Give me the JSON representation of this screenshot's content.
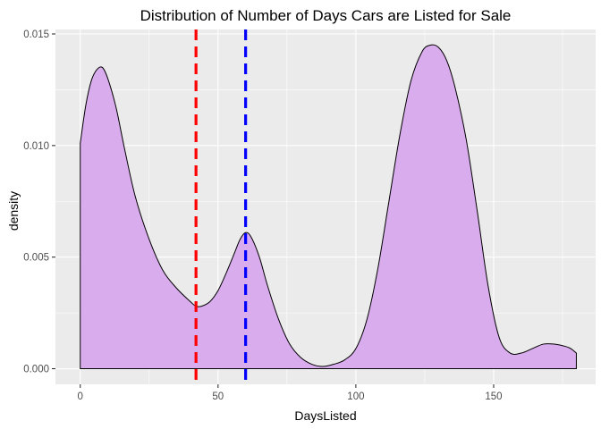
{
  "chart_data": {
    "type": "area",
    "title": "Distribution of Number of Days Cars are Listed for Sale",
    "xlabel": "DaysListed",
    "ylabel": "density",
    "xlim": [
      -9,
      187
    ],
    "ylim": [
      -0.0007,
      0.0152
    ],
    "x_ticks": [
      0,
      50,
      100,
      150
    ],
    "x_tick_labels": [
      "0",
      "50",
      "100",
      "150"
    ],
    "y_ticks": [
      0.0,
      0.005,
      0.01,
      0.015
    ],
    "y_tick_labels": [
      "0.000",
      "0.005",
      "0.010",
      "0.015"
    ],
    "grid": true,
    "legend": "none",
    "series": [
      {
        "x": [
          0,
          2,
          4,
          6,
          8,
          10,
          13,
          16,
          20,
          25,
          30,
          35,
          40,
          42,
          44,
          47,
          50,
          53,
          56,
          58,
          60,
          62,
          65,
          68,
          72,
          76,
          80,
          84,
          88,
          92,
          96,
          100,
          104,
          108,
          112,
          116,
          120,
          124,
          127,
          130,
          133,
          136,
          140,
          144,
          148,
          152,
          156,
          160,
          164,
          168,
          172,
          176,
          178,
          180
        ],
        "y": [
          0.0101,
          0.0118,
          0.0129,
          0.0134,
          0.0135,
          0.013,
          0.0117,
          0.0099,
          0.0077,
          0.0058,
          0.0044,
          0.0036,
          0.003,
          0.0028,
          0.0028,
          0.003,
          0.0035,
          0.0043,
          0.0052,
          0.0058,
          0.0061,
          0.0059,
          0.005,
          0.0037,
          0.0022,
          0.0011,
          0.0005,
          0.0002,
          0.0001,
          0.0002,
          0.0004,
          0.0009,
          0.0022,
          0.0045,
          0.0075,
          0.0105,
          0.0129,
          0.0142,
          0.0145,
          0.0144,
          0.0138,
          0.0126,
          0.0103,
          0.0071,
          0.0037,
          0.0014,
          0.0007,
          0.0007,
          0.0009,
          0.0011,
          0.0011,
          0.001,
          0.0009,
          0.0007
        ],
        "fill": "#d9aced",
        "stroke": "#000000"
      }
    ],
    "vlines": [
      {
        "x": 42,
        "color": "#ff0000",
        "style": "dashed"
      },
      {
        "x": 60,
        "color": "#0000ff",
        "style": "dashed"
      }
    ],
    "panel_background": "#ebebeb"
  }
}
